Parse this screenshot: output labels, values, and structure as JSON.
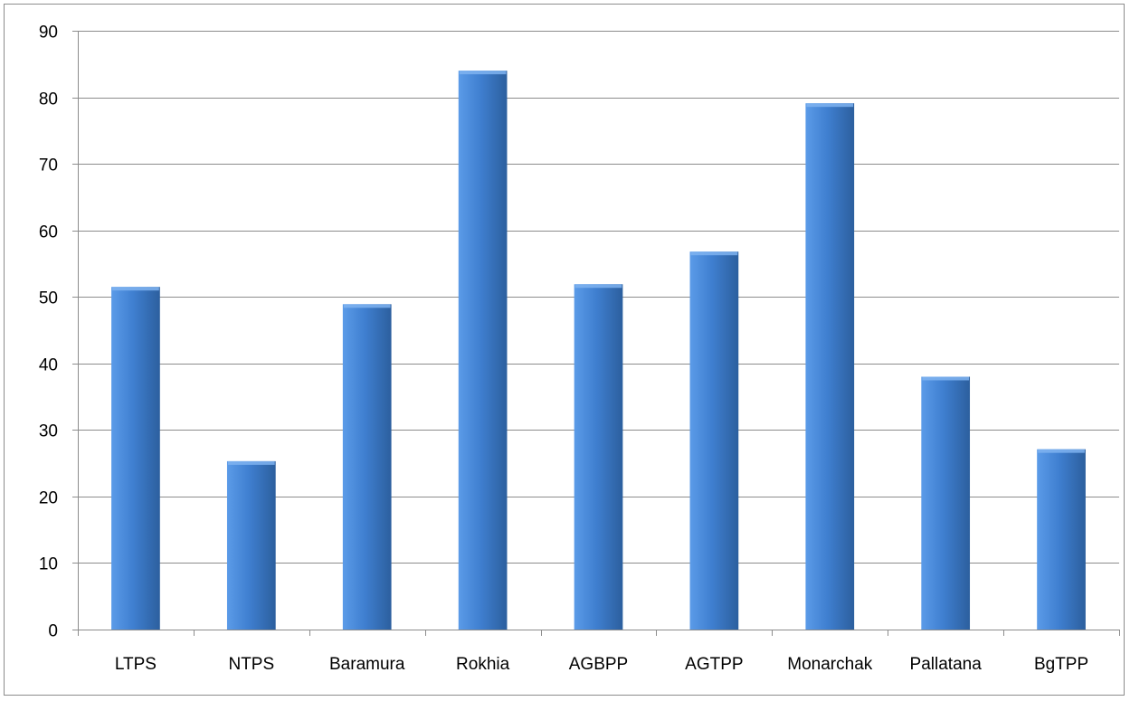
{
  "chart_data": {
    "type": "bar",
    "title": "",
    "xlabel": "",
    "ylabel": "",
    "categories": [
      "LTPS",
      "NTPS",
      "Baramura",
      "Rokhia",
      "AGBPP",
      "AGTPP",
      "Monarchak",
      "Pallatana",
      "BgTPP"
    ],
    "values": [
      51.5,
      25.3,
      48.9,
      84.0,
      51.9,
      56.8,
      79.1,
      38.0,
      27.1
    ],
    "ylim": [
      0,
      90
    ],
    "yticks": [
      0,
      10,
      20,
      30,
      40,
      50,
      60,
      70,
      80,
      90
    ],
    "grid": true,
    "legend": "none",
    "colors": {
      "bar_light": "#5b9be8",
      "bar_main": "#3f7fd0",
      "bar_dark": "#2c5f9e",
      "grid": "#8c8c8c",
      "axis": "#8c8c8c"
    }
  }
}
